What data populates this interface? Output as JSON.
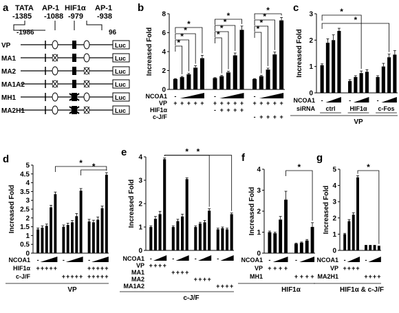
{
  "figure": {
    "panel_letters": [
      "a",
      "b",
      "c",
      "d",
      "e",
      "f",
      "g"
    ],
    "schematic": {
      "elements": [
        {
          "name": "TATA",
          "pos": "-1385"
        },
        {
          "name": "AP-1",
          "pos": "-1088"
        },
        {
          "name": "HIF1α",
          "pos": "-979"
        },
        {
          "name": "AP-1",
          "pos": "-938"
        }
      ],
      "start": "-1986",
      "end": "96",
      "constructs": [
        "VP",
        "MA1",
        "MA2",
        "MA1A2",
        "MH1",
        "MA2H1"
      ],
      "reporter": "Luc"
    },
    "star": "*"
  },
  "chart_data": [
    {
      "panel": "b",
      "type": "bar",
      "ylabel": "Increased Fold",
      "ylim": [
        0,
        8
      ],
      "yticks": [
        "0",
        "2",
        "4",
        "6",
        "8"
      ],
      "values": [
        1.1,
        1.3,
        1.6,
        2.3,
        3.3,
        1.2,
        1.4,
        1.8,
        3.6,
        6.3,
        1.1,
        1.4,
        2.1,
        3.7,
        7.3
      ],
      "errors": [
        0.05,
        0.08,
        0.1,
        0.2,
        0.3,
        0.05,
        0.08,
        0.12,
        0.25,
        0.4,
        0.05,
        0.08,
        0.15,
        0.25,
        0.3
      ],
      "rows": [
        {
          "label": "NCOA1",
          "cells": [
            "-",
            "",
            "",
            "",
            "",
            "-",
            "",
            "",
            "",
            "",
            "-",
            "",
            "",
            "",
            ""
          ]
        },
        {
          "label": "VP",
          "cells": [
            "+",
            "+",
            "+",
            "+",
            "+",
            "+",
            "+",
            "+",
            "+",
            "+",
            "+",
            "+",
            "+",
            "+",
            "+"
          ]
        },
        {
          "label": "HIF1α",
          "cells": [
            "",
            "",
            "",
            "",
            "",
            "-",
            "+",
            "+",
            "+",
            "+",
            "",
            "",
            "",
            "",
            ""
          ]
        },
        {
          "label": "c-J/F",
          "cells": [
            "",
            "",
            "",
            "",
            "",
            "",
            "",
            "",
            "",
            "",
            "-",
            "+",
            "+",
            "+",
            "+"
          ]
        }
      ]
    },
    {
      "panel": "c",
      "type": "bar",
      "ylabel": "Increased Fold",
      "ylim": [
        0,
        3
      ],
      "yticks": [
        "0",
        "1",
        "2",
        "3"
      ],
      "values": [
        1.05,
        1.9,
        2.0,
        2.35,
        0.45,
        0.6,
        0.75,
        0.8,
        0.6,
        1.0,
        1.35,
        1.45
      ],
      "errors": [
        0.05,
        0.15,
        0.2,
        0.1,
        0.05,
        0.05,
        0.08,
        0.08,
        0.05,
        0.12,
        0.12,
        0.15
      ],
      "rows": [
        {
          "label": "NCOA1",
          "cells": [
            "-",
            "",
            "",
            "",
            "-",
            "",
            "",
            "",
            "-",
            "",
            "",
            ""
          ]
        },
        {
          "label": "siRNA",
          "groups": [
            "ctrl",
            "HIF1α",
            "c-Fos"
          ]
        }
      ],
      "footer": "VP"
    },
    {
      "panel": "d",
      "type": "bar",
      "ylabel": "Increased Fold",
      "ylim": [
        0,
        5
      ],
      "yticks": [
        "0",
        "0.5",
        "1",
        "1.5",
        "2",
        "2.5",
        "3",
        "3.5",
        "4",
        "4.5",
        "5"
      ],
      "values": [
        1.35,
        1.45,
        1.55,
        2.6,
        3.35,
        1.5,
        1.6,
        1.75,
        2.1,
        3.55,
        1.8,
        1.75,
        1.9,
        2.55,
        4.45
      ],
      "errors": [
        0.08,
        0.1,
        0.1,
        0.12,
        0.12,
        0.1,
        0.1,
        0.1,
        0.15,
        0.12,
        0.12,
        0.12,
        0.15,
        0.12,
        0.12
      ],
      "rows": [
        {
          "label": "NCOA1",
          "cells": [
            "-",
            "",
            "",
            "",
            "",
            "-",
            "",
            "",
            "",
            "",
            "-",
            "",
            "",
            "",
            ""
          ]
        },
        {
          "label": "HIF1α",
          "cells": [
            "+",
            "+",
            "+",
            "+",
            "+",
            "",
            "",
            "",
            "",
            "",
            "+",
            "+",
            "+",
            "+",
            "+"
          ]
        },
        {
          "label": "c-J/F",
          "cells": [
            "",
            "",
            "",
            "",
            "",
            "+",
            "+",
            "+",
            "+",
            "+",
            "+",
            "+",
            "+",
            "+",
            "+"
          ]
        }
      ],
      "footer": "VP"
    },
    {
      "panel": "e",
      "type": "bar",
      "ylabel": "Increased Fold",
      "ylim": [
        0,
        4
      ],
      "yticks": [
        "0",
        "1",
        "2",
        "3",
        "4"
      ],
      "values": [
        1.0,
        1.35,
        1.55,
        3.9,
        1.0,
        1.25,
        1.45,
        3.05,
        1.0,
        1.15,
        1.2,
        1.7,
        0.9,
        0.95,
        0.9,
        1.55
      ],
      "errors": [
        0.05,
        0.1,
        0.12,
        0.05,
        0.05,
        0.08,
        0.1,
        0.05,
        0.05,
        0.05,
        0.08,
        0.08,
        0.05,
        0.05,
        0.05,
        0.05
      ],
      "rows": [
        {
          "label": "NCOA1",
          "cells": [
            "-",
            "",
            "",
            "",
            "-",
            "",
            "",
            "",
            "-",
            "",
            "",
            "",
            "-",
            "",
            "",
            ""
          ]
        },
        {
          "label": "VP",
          "cells": [
            "+",
            "+",
            "+",
            "+",
            "",
            "",
            "",
            "",
            "",
            "",
            "",
            "",
            "",
            "",
            "",
            ""
          ]
        },
        {
          "label": "MA1",
          "cells": [
            "",
            "",
            "",
            "",
            "+",
            "+",
            "+",
            "+",
            "",
            "",
            "",
            "",
            "",
            "",
            "",
            ""
          ]
        },
        {
          "label": "MA2",
          "cells": [
            "",
            "",
            "",
            "",
            "",
            "",
            "",
            "",
            "+",
            "+",
            "+",
            "+",
            "",
            "",
            "",
            ""
          ]
        },
        {
          "label": "MA1A2",
          "cells": [
            "",
            "",
            "",
            "",
            "",
            "",
            "",
            "",
            "",
            "",
            "",
            "",
            "+",
            "+",
            "+",
            "+"
          ]
        }
      ],
      "footer": "c-J/F"
    },
    {
      "panel": "f",
      "type": "bar",
      "ylabel": "Increased Fold",
      "ylim": [
        0,
        4
      ],
      "yticks": [
        "0",
        "1",
        "2",
        "3",
        "4"
      ],
      "values": [
        1.0,
        0.95,
        1.6,
        2.55,
        0.45,
        0.5,
        0.6,
        1.25
      ],
      "errors": [
        0.05,
        0.05,
        0.15,
        0.4,
        0.03,
        0.03,
        0.05,
        0.2
      ],
      "rows": [
        {
          "label": "NCOA1",
          "cells": [
            "-",
            "",
            "",
            "",
            "-",
            "",
            "",
            ""
          ]
        },
        {
          "label": "VP",
          "cells": [
            "+",
            "+",
            "+",
            "+",
            "",
            "",
            "",
            ""
          ]
        },
        {
          "label": "MH1",
          "cells": [
            "",
            "",
            "",
            "",
            "+",
            "+",
            "+",
            "+"
          ]
        }
      ],
      "footer": "HIF1α"
    },
    {
      "panel": "g",
      "type": "bar",
      "ylabel": "Increased Fold",
      "ylim": [
        0,
        5
      ],
      "yticks": [
        "0",
        "1",
        "2",
        "3",
        "4",
        "5"
      ],
      "values": [
        1.0,
        1.8,
        2.2,
        4.5,
        0.3,
        0.3,
        0.3,
        0.25
      ],
      "errors": [
        0.05,
        0.1,
        0.12,
        0.1,
        0.02,
        0.02,
        0.02,
        0.02
      ],
      "rows": [
        {
          "label": "NCOA1",
          "cells": [
            "-",
            "",
            "",
            "",
            "-",
            "",
            "",
            ""
          ]
        },
        {
          "label": "VP",
          "cells": [
            "+",
            "+",
            "+",
            "+",
            "",
            "",
            "",
            ""
          ]
        },
        {
          "label": "MA2H1",
          "cells": [
            "",
            "",
            "",
            "",
            "+",
            "+",
            "+",
            "+"
          ]
        }
      ],
      "footer": "HIF1α & c-J/F"
    }
  ]
}
